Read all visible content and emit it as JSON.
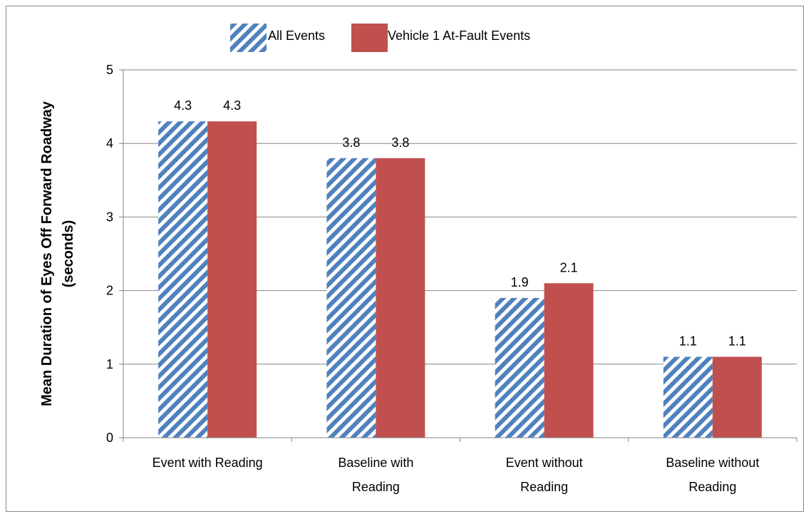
{
  "chart_data": {
    "type": "bar",
    "title": "",
    "xlabel": "",
    "ylabel_lines": [
      "Mean Duration of Eyes Off Forward Roadway",
      "(seconds)"
    ],
    "categories": [
      [
        "Event with  Reading"
      ],
      [
        "Baseline with",
        "Reading"
      ],
      [
        "Event without",
        "Reading"
      ],
      [
        "Baseline without",
        "Reading"
      ]
    ],
    "series": [
      {
        "name": "All Events",
        "values": [
          4.3,
          3.8,
          1.9,
          1.1
        ],
        "labels": [
          "4.3",
          "3.8",
          "1.9",
          "1.1"
        ],
        "pattern": "diagonal-stripe",
        "color": "#4f81bd"
      },
      {
        "name": "Vehicle 1 At-Fault  Events",
        "values": [
          4.3,
          3.8,
          2.1,
          1.1
        ],
        "labels": [
          "4.3",
          "3.8",
          "2.1",
          "1.1"
        ],
        "pattern": "solid",
        "color": "#c0504d"
      }
    ],
    "ylim": [
      0,
      5
    ],
    "yticks": [
      "0",
      "1",
      "2",
      "3",
      "4",
      "5"
    ],
    "grid": true,
    "legend_position": "top-center"
  }
}
